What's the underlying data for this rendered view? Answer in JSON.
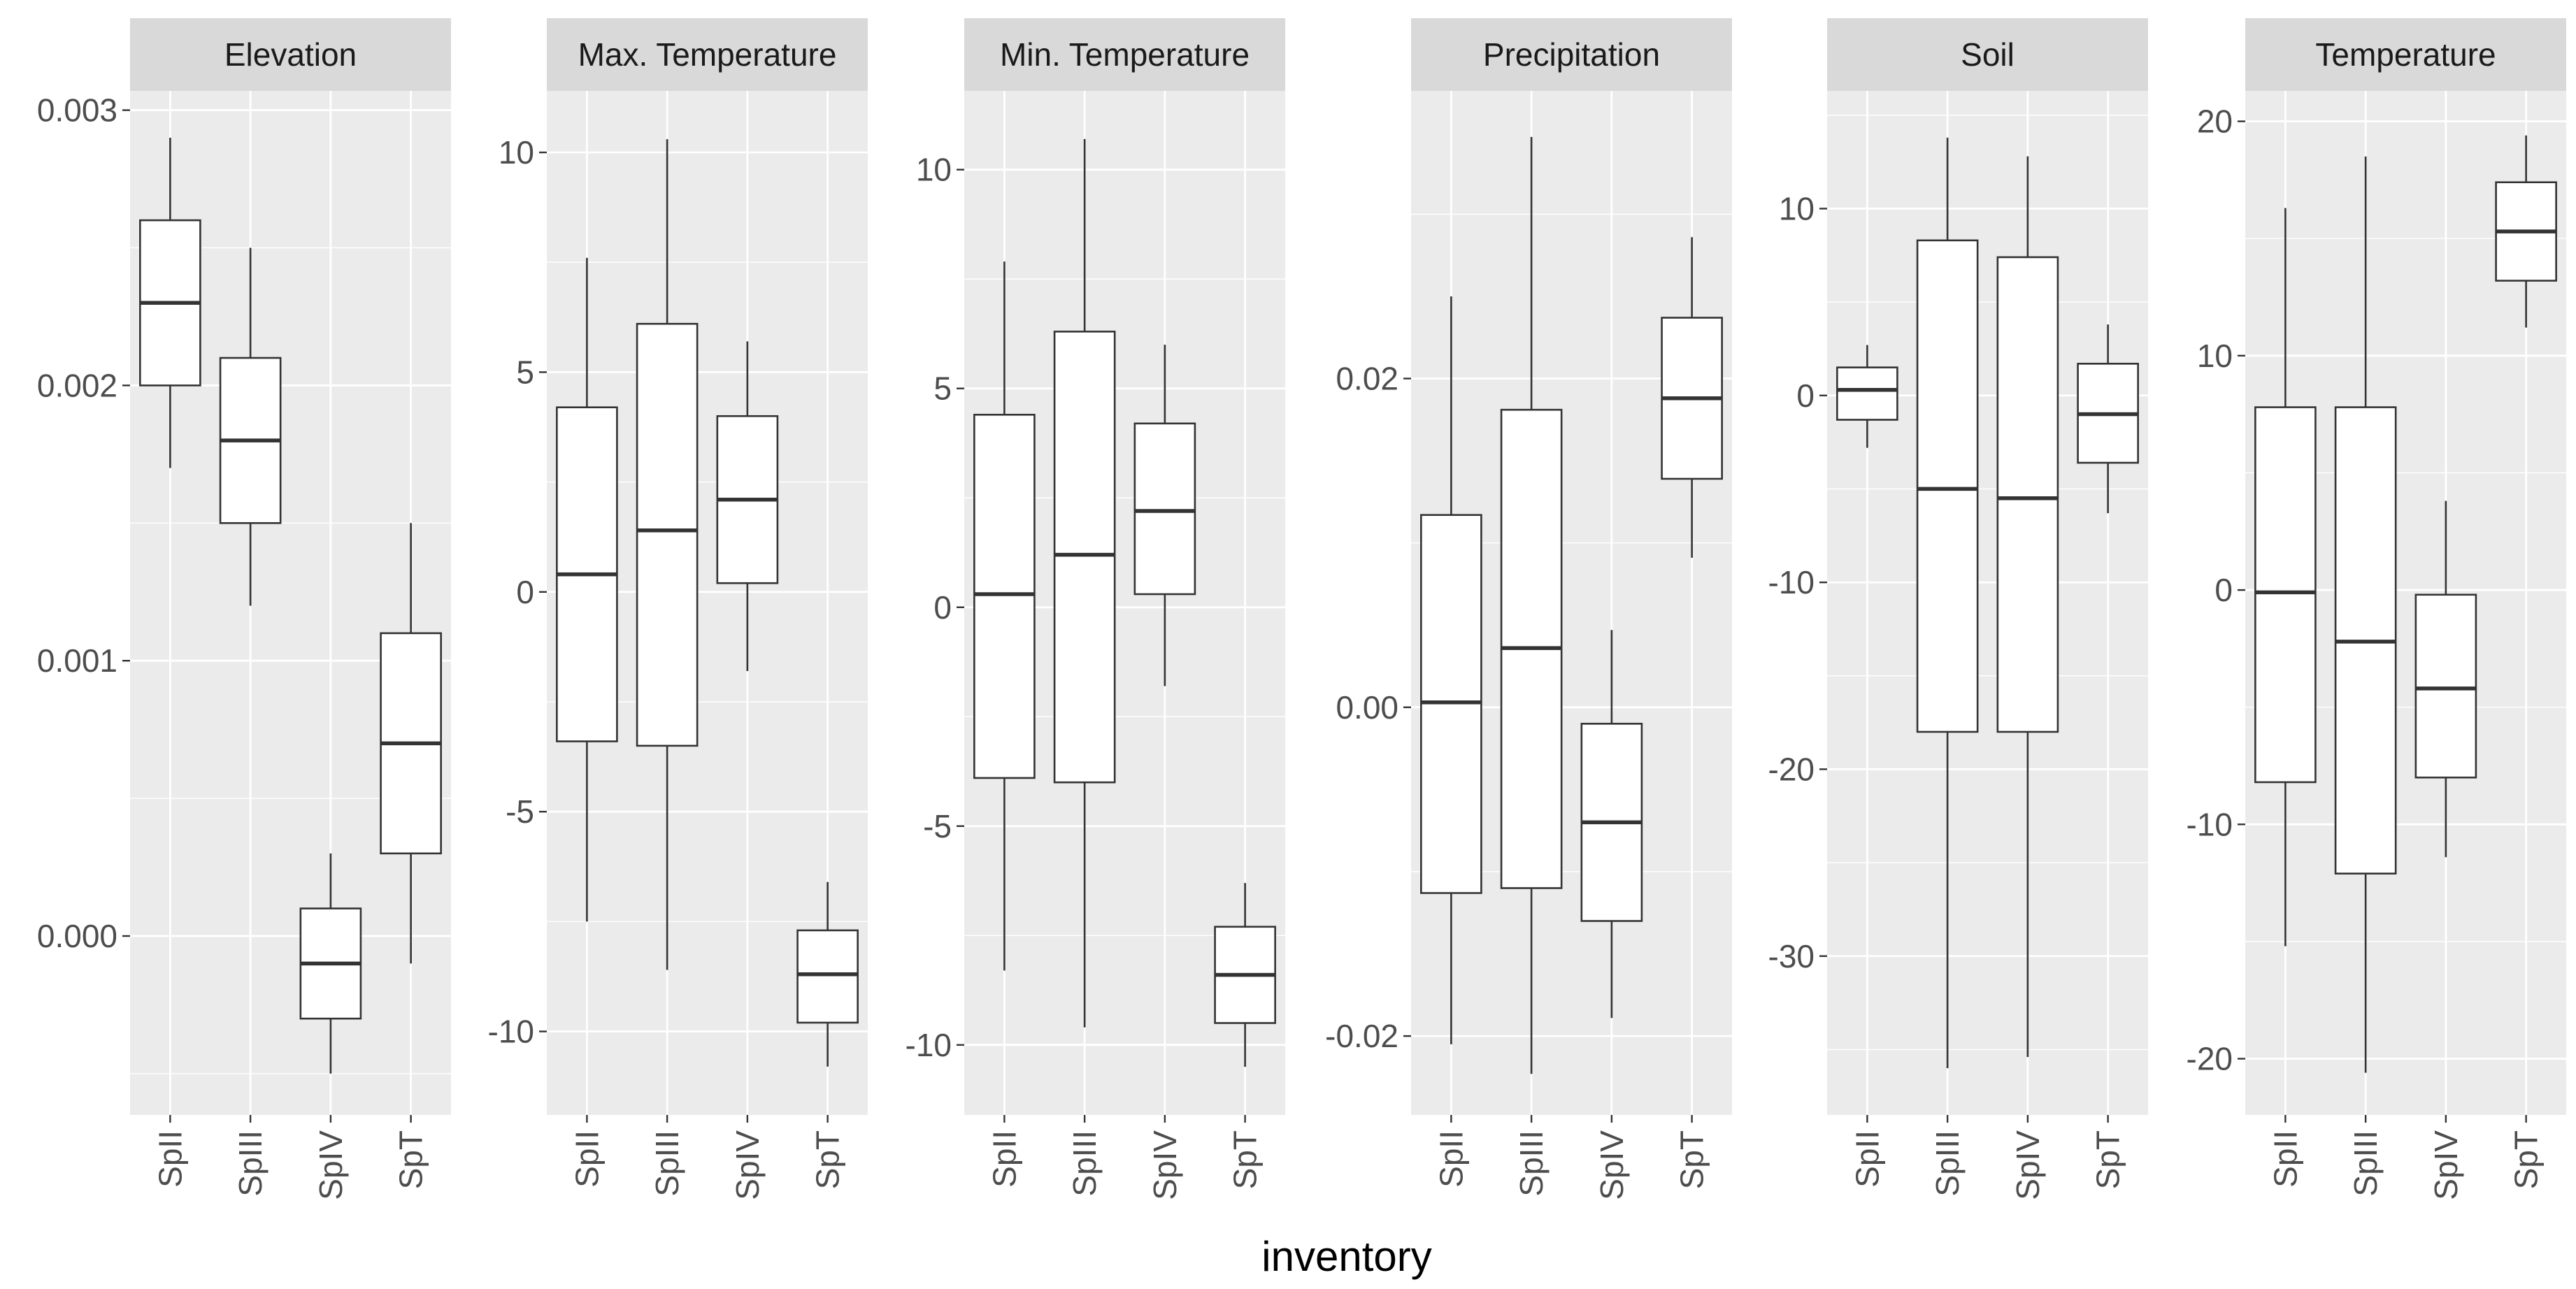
{
  "xlabel": "inventory",
  "categories": [
    "SpII",
    "SpIII",
    "SpIV",
    "SpT"
  ],
  "colors": {
    "panel_bg": "#EBEBEB",
    "strip_bg": "#D9D9D9",
    "grid_major": "#FFFFFF",
    "box_fill": "#FFFFFF",
    "box_line": "#333333",
    "tick_text": "#4D4D4D"
  },
  "chart_data": {
    "type": "boxplot",
    "facet_by": "variable",
    "scales": "free_y",
    "xlabel": "inventory",
    "ylabel": "",
    "grid": true,
    "legend": "none",
    "categories": [
      "SpII",
      "SpIII",
      "SpIV",
      "SpT"
    ],
    "panels": [
      {
        "title": "Elevation",
        "ylim": [
          -0.00065,
          0.00307
        ],
        "yticks": [
          0.0,
          0.001,
          0.002,
          0.003
        ],
        "ytick_labels": [
          "0.000",
          "0.001",
          "0.002",
          "0.003"
        ],
        "boxes": [
          {
            "category": "SpII",
            "lower_whisker": 0.0017,
            "q1": 0.002,
            "median": 0.0023,
            "q3": 0.0026,
            "upper_whisker": 0.0029
          },
          {
            "category": "SpIII",
            "lower_whisker": 0.0012,
            "q1": 0.0015,
            "median": 0.0018,
            "q3": 0.0021,
            "upper_whisker": 0.0025
          },
          {
            "category": "SpIV",
            "lower_whisker": -0.0005,
            "q1": -0.0003,
            "median": -0.0001,
            "q3": 0.0001,
            "upper_whisker": 0.0003
          },
          {
            "category": "SpT",
            "lower_whisker": -0.0001,
            "q1": 0.0003,
            "median": 0.0007,
            "q3": 0.0011,
            "upper_whisker": 0.0015
          }
        ]
      },
      {
        "title": "Max. Temperature",
        "ylim": [
          -11.9,
          11.4
        ],
        "yticks": [
          -10,
          -5,
          0,
          5,
          10
        ],
        "ytick_labels": [
          "-10",
          "-5",
          "0",
          "5",
          "10"
        ],
        "boxes": [
          {
            "category": "SpII",
            "lower_whisker": -7.5,
            "q1": -3.4,
            "median": 0.4,
            "q3": 4.2,
            "upper_whisker": 7.6
          },
          {
            "category": "SpIII",
            "lower_whisker": -8.6,
            "q1": -3.5,
            "median": 1.4,
            "q3": 6.1,
            "upper_whisker": 10.3
          },
          {
            "category": "SpIV",
            "lower_whisker": -1.8,
            "q1": 0.2,
            "median": 2.1,
            "q3": 4.0,
            "upper_whisker": 5.7
          },
          {
            "category": "SpT",
            "lower_whisker": -10.8,
            "q1": -9.8,
            "median": -8.7,
            "q3": -7.7,
            "upper_whisker": -6.6
          }
        ]
      },
      {
        "title": "Min. Temperature",
        "ylim": [
          -11.6,
          11.8
        ],
        "yticks": [
          -10,
          -5,
          0,
          5,
          10
        ],
        "ytick_labels": [
          "-10",
          "-5",
          "0",
          "5",
          "10"
        ],
        "boxes": [
          {
            "category": "SpII",
            "lower_whisker": -8.3,
            "q1": -3.9,
            "median": 0.3,
            "q3": 4.4,
            "upper_whisker": 7.9
          },
          {
            "category": "SpIII",
            "lower_whisker": -9.6,
            "q1": -4.0,
            "median": 1.2,
            "q3": 6.3,
            "upper_whisker": 10.7
          },
          {
            "category": "SpIV",
            "lower_whisker": -1.8,
            "q1": 0.3,
            "median": 2.2,
            "q3": 4.2,
            "upper_whisker": 6.0
          },
          {
            "category": "SpT",
            "lower_whisker": -10.5,
            "q1": -9.5,
            "median": -8.4,
            "q3": -7.3,
            "upper_whisker": -6.3
          }
        ]
      },
      {
        "title": "Precipitation",
        "ylim": [
          -0.0248,
          0.0375
        ],
        "yticks": [
          -0.02,
          0.0,
          0.02
        ],
        "ytick_labels": [
          "-0.02",
          "0.00",
          "0.02"
        ],
        "boxes": [
          {
            "category": "SpII",
            "lower_whisker": -0.0205,
            "q1": -0.0113,
            "median": 0.0003,
            "q3": 0.0117,
            "upper_whisker": 0.025
          },
          {
            "category": "SpIII",
            "lower_whisker": -0.0223,
            "q1": -0.011,
            "median": 0.0036,
            "q3": 0.0181,
            "upper_whisker": 0.0347
          },
          {
            "category": "SpIV",
            "lower_whisker": -0.0189,
            "q1": -0.013,
            "median": -0.007,
            "q3": -0.001,
            "upper_whisker": 0.0047
          },
          {
            "category": "SpT",
            "lower_whisker": 0.0091,
            "q1": 0.0139,
            "median": 0.0188,
            "q3": 0.0237,
            "upper_whisker": 0.0286
          }
        ]
      },
      {
        "title": "Soil",
        "ylim": [
          -38.5,
          16.3
        ],
        "yticks": [
          -30,
          -20,
          -10,
          0,
          10
        ],
        "ytick_labels": [
          "-30",
          "-20",
          "-10",
          "0",
          "10"
        ],
        "boxes": [
          {
            "category": "SpII",
            "lower_whisker": -2.8,
            "q1": -1.3,
            "median": 0.3,
            "q3": 1.5,
            "upper_whisker": 2.7
          },
          {
            "category": "SpIII",
            "lower_whisker": -36.0,
            "q1": -18.0,
            "median": -5.0,
            "q3": 8.3,
            "upper_whisker": 13.8
          },
          {
            "category": "SpIV",
            "lower_whisker": -35.4,
            "q1": -18.0,
            "median": -5.5,
            "q3": 7.4,
            "upper_whisker": 12.8
          },
          {
            "category": "SpT",
            "lower_whisker": -6.3,
            "q1": -3.6,
            "median": -1.0,
            "q3": 1.7,
            "upper_whisker": 3.8
          }
        ]
      },
      {
        "title": "Temperature",
        "ylim": [
          -22.4,
          21.3
        ],
        "yticks": [
          -20,
          -10,
          0,
          10,
          20
        ],
        "ytick_labels": [
          "-20",
          "-10",
          "0",
          "10",
          "20"
        ],
        "boxes": [
          {
            "category": "SpII",
            "lower_whisker": -15.2,
            "q1": -8.2,
            "median": -0.1,
            "q3": 7.8,
            "upper_whisker": 16.3
          },
          {
            "category": "SpIII",
            "lower_whisker": -20.6,
            "q1": -12.1,
            "median": -2.2,
            "q3": 7.8,
            "upper_whisker": 18.5
          },
          {
            "category": "SpIV",
            "lower_whisker": -11.4,
            "q1": -8.0,
            "median": -4.2,
            "q3": -0.2,
            "upper_whisker": 3.8
          },
          {
            "category": "SpT",
            "lower_whisker": 11.2,
            "q1": 13.2,
            "median": 15.3,
            "q3": 17.4,
            "upper_whisker": 19.4
          }
        ]
      }
    ]
  }
}
